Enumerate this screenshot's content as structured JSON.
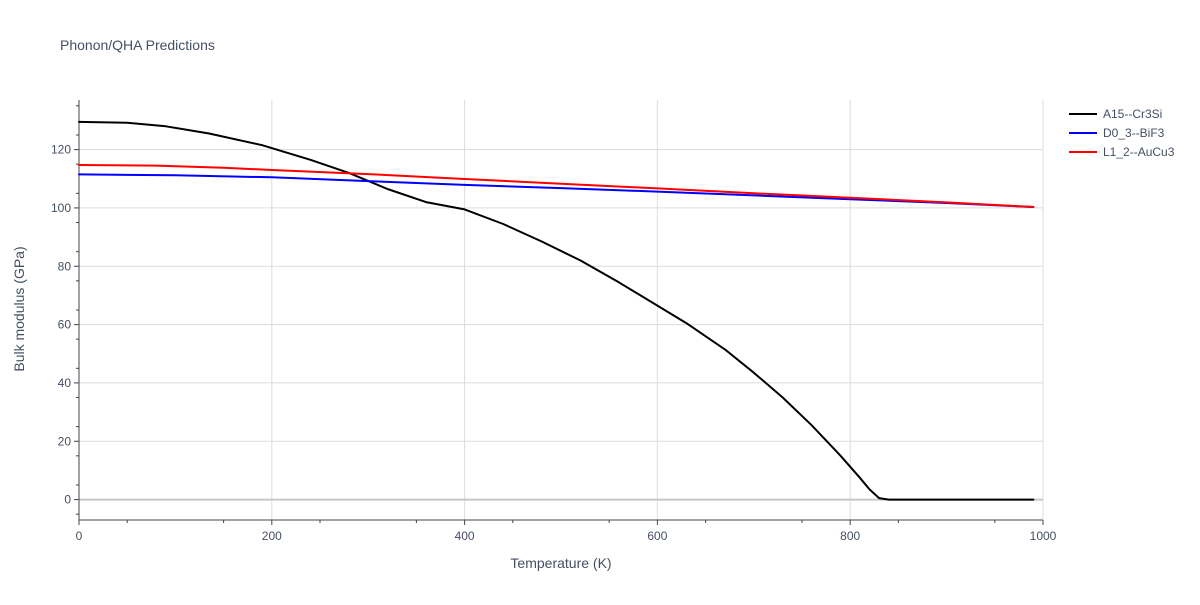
{
  "chart_data": {
    "type": "line",
    "title": "Phonon/QHA Predictions",
    "xlabel": "Temperature (K)",
    "ylabel": "Bulk modulus (GPa)",
    "xlim": [
      0,
      1000
    ],
    "ylim": [
      -7,
      137
    ],
    "x_ticks": [
      0,
      200,
      400,
      600,
      800,
      1000
    ],
    "y_ticks": [
      0,
      20,
      40,
      60,
      80,
      100,
      120
    ],
    "grid": true,
    "legend_position": "top-right",
    "series": [
      {
        "name": "A15--Cr3Si",
        "color": "#000000",
        "x": [
          0,
          50,
          90,
          135,
          190,
          240,
          280,
          320,
          360,
          400,
          440,
          480,
          520,
          560,
          600,
          630,
          670,
          700,
          730,
          760,
          790,
          810,
          820,
          830,
          840,
          900,
          990
        ],
        "y": [
          129.5,
          129.2,
          128,
          125.5,
          121.5,
          116.5,
          112,
          106.5,
          102,
          99.5,
          94.5,
          88.5,
          82,
          74.5,
          66.5,
          60.5,
          51.5,
          43.5,
          35,
          25.5,
          15,
          7.5,
          3.5,
          0.5,
          0,
          0,
          0
        ]
      },
      {
        "name": "D0_3--BiF3",
        "color": "#0000ff",
        "x": [
          0,
          100,
          200,
          300,
          400,
          500,
          600,
          700,
          800,
          900,
          990
        ],
        "y": [
          111.5,
          111.2,
          110.5,
          109.2,
          107.9,
          106.8,
          105.6,
          104.3,
          103,
          101.7,
          100.3
        ]
      },
      {
        "name": "L1_2--AuCu3",
        "color": "#ff0000",
        "x": [
          0,
          80,
          150,
          200,
          300,
          400,
          500,
          600,
          700,
          800,
          900,
          990
        ],
        "y": [
          114.7,
          114.5,
          113.8,
          113,
          111.6,
          109.9,
          108.3,
          106.7,
          105,
          103.5,
          101.9,
          100.3
        ]
      }
    ]
  }
}
